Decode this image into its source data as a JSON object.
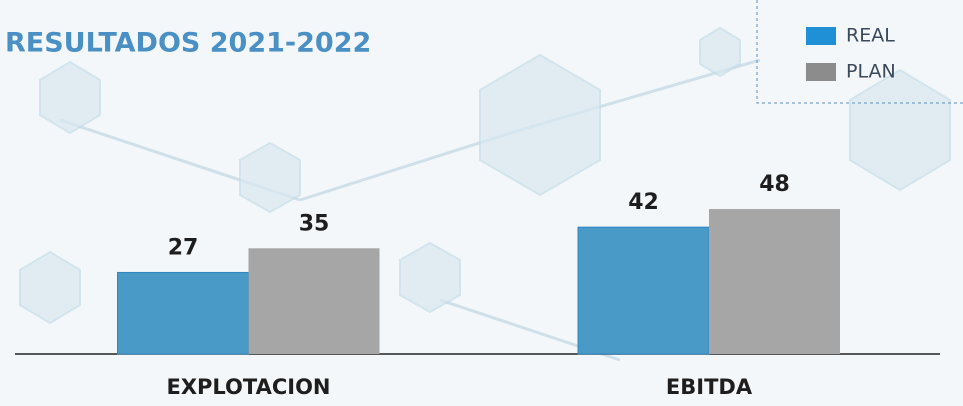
{
  "chart_data": {
    "type": "bar",
    "title": "RESULTADOS 2021-2022",
    "categories": [
      "EXPLOTACION",
      "EBITDA"
    ],
    "series": [
      {
        "name": "REAL",
        "color": "#4a9ac7",
        "values": [
          27,
          42
        ]
      },
      {
        "name": "PLAN",
        "color": "#a6a6a6",
        "values": [
          35,
          48
        ]
      }
    ],
    "legend": "top-right"
  }
}
